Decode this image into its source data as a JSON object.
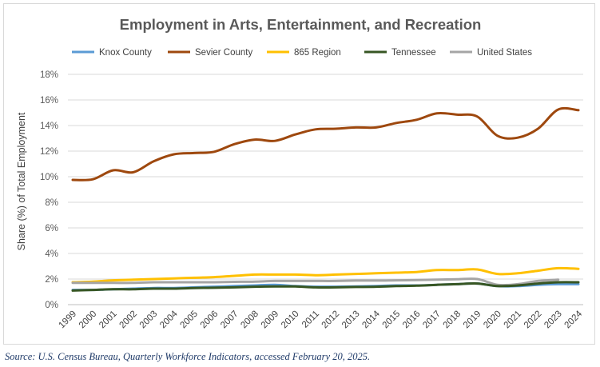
{
  "source_note": "Source: U.S. Census Bureau, Quarterly Workforce Indicators, accessed February 20, 2025.",
  "chart_data": {
    "type": "line",
    "title": "Employment in Arts, Entertainment, and Recreation",
    "ylabel": "Share (%) of Total Employment",
    "xlabel": "",
    "ylim": [
      0,
      18
    ],
    "yticks": [
      0,
      2,
      4,
      6,
      8,
      10,
      12,
      14,
      16,
      18
    ],
    "ytick_labels": [
      "0%",
      "2%",
      "4%",
      "6%",
      "8%",
      "10%",
      "12%",
      "14%",
      "16%",
      "18%"
    ],
    "grid": true,
    "legend_position": "top",
    "categories": [
      "1999",
      "2000",
      "2001",
      "2002",
      "2003",
      "2004",
      "2005",
      "2006",
      "2007",
      "2008",
      "2009",
      "2010",
      "2011",
      "2012",
      "2013",
      "2014",
      "2015",
      "2016",
      "2017",
      "2018",
      "2019",
      "2020",
      "2021",
      "2022",
      "2023",
      "2024"
    ],
    "series": [
      {
        "name": "Knox County",
        "color": "#5b9bd5",
        "values": [
          1.15,
          1.15,
          1.2,
          1.25,
          1.3,
          1.3,
          1.35,
          1.4,
          1.45,
          1.5,
          1.55,
          1.45,
          1.4,
          1.4,
          1.42,
          1.45,
          1.5,
          1.5,
          1.55,
          1.6,
          1.65,
          1.45,
          1.45,
          1.55,
          1.6,
          1.6
        ]
      },
      {
        "name": "Sevier County",
        "color": "#9e480e",
        "values": [
          9.75,
          9.8,
          10.5,
          10.35,
          11.2,
          11.75,
          11.85,
          11.95,
          12.55,
          12.9,
          12.8,
          13.3,
          13.7,
          13.75,
          13.85,
          13.85,
          14.2,
          14.45,
          14.95,
          14.85,
          14.7,
          13.2,
          13.05,
          13.75,
          15.25,
          15.2
        ]
      },
      {
        "name": "865 Region",
        "color": "#ffc000",
        "values": [
          1.75,
          1.8,
          1.9,
          1.95,
          2.0,
          2.05,
          2.1,
          2.15,
          2.25,
          2.35,
          2.35,
          2.35,
          2.3,
          2.35,
          2.4,
          2.45,
          2.5,
          2.55,
          2.7,
          2.7,
          2.75,
          2.4,
          2.45,
          2.65,
          2.85,
          2.8
        ]
      },
      {
        "name": "Tennessee",
        "color": "#375623",
        "values": [
          1.1,
          1.15,
          1.2,
          1.2,
          1.25,
          1.25,
          1.3,
          1.32,
          1.35,
          1.4,
          1.42,
          1.42,
          1.35,
          1.35,
          1.38,
          1.4,
          1.45,
          1.48,
          1.55,
          1.6,
          1.65,
          1.45,
          1.5,
          1.65,
          1.75,
          1.75
        ]
      },
      {
        "name": "United States",
        "color": "#a5a5a5",
        "values": [
          1.7,
          1.7,
          1.7,
          1.7,
          1.75,
          1.75,
          1.75,
          1.75,
          1.78,
          1.8,
          1.85,
          1.85,
          1.85,
          1.85,
          1.88,
          1.88,
          1.9,
          1.92,
          1.95,
          1.98,
          2.0,
          1.55,
          1.6,
          1.85,
          1.95,
          null
        ]
      }
    ]
  }
}
